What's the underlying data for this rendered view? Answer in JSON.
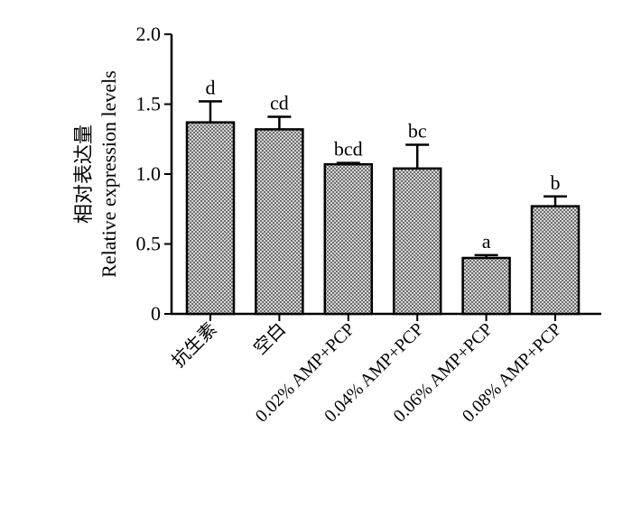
{
  "chart_data": {
    "type": "bar",
    "title": "",
    "ylabel_zh": "相对表达量",
    "ylabel": "Relative expression levels",
    "xlabel": "",
    "ylim": [
      0,
      2.0
    ],
    "yticks": [
      "0",
      "0.5",
      "1.0",
      "1.5",
      "2.0"
    ],
    "ytick_values": [
      0,
      0.5,
      1.0,
      1.5,
      2.0
    ],
    "categories": [
      "抗生素",
      "空白",
      "0.02% AMP+PCP",
      "0.04% AMP+PCP",
      "0.06% AMP+PCP",
      "0.08% AMP+PCP"
    ],
    "values": [
      1.37,
      1.32,
      1.07,
      1.04,
      0.4,
      0.77
    ],
    "errors": [
      0.15,
      0.09,
      0.01,
      0.17,
      0.02,
      0.07
    ],
    "significance": [
      "d",
      "cd",
      "bcd",
      "bc",
      "a",
      "b"
    ],
    "bar_fill": "#a9a9a9",
    "bar_pattern": "checkered",
    "grid": false,
    "legend": "none"
  }
}
